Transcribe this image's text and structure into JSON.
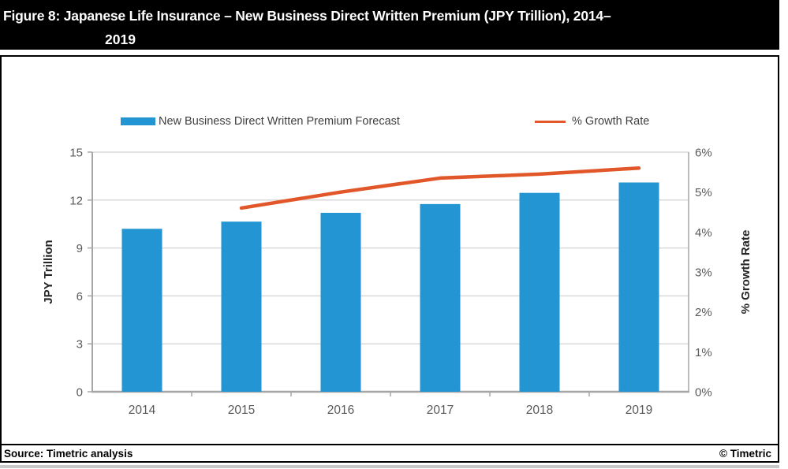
{
  "title": {
    "line1": "Figure 8: Japanese Life Insurance – New Business Direct Written Premium (JPY Trillion), 2014–",
    "line2": "2019"
  },
  "legend": {
    "premium_label": "New Business Direct Written Premium Forecast",
    "growth_label": "% Growth Rate"
  },
  "footer": {
    "source": "Source: Timetric analysis",
    "copyright": "© Timetric"
  },
  "colors": {
    "bar": "#2295d2",
    "line": "#e2572a",
    "grid": "#d9d9d9",
    "axis": "#a6a6a6",
    "tick_text": "#595959",
    "axis_title_text": "#262626",
    "title_bg": "#000000",
    "title_text": "#ffffff"
  },
  "chart_data": {
    "type": "bar",
    "subtype": "bar+line combo, dual axis",
    "categories": [
      "2014",
      "2015",
      "2016",
      "2017",
      "2018",
      "2019"
    ],
    "series": [
      {
        "name": "New Business Direct Written Premium Forecast",
        "type": "bar",
        "axis": "left",
        "color": "#2295d2",
        "values": [
          10.2,
          10.65,
          11.2,
          11.75,
          12.45,
          13.1
        ]
      },
      {
        "name": "% Growth Rate",
        "type": "line",
        "axis": "right",
        "color": "#e2572a",
        "values": [
          null,
          4.6,
          5.0,
          5.35,
          5.45,
          5.6
        ]
      }
    ],
    "left_axis": {
      "label": "JPY Trillion",
      "min": 0,
      "max": 15,
      "step": 3,
      "ticks": [
        "0",
        "3",
        "6",
        "9",
        "12",
        "15"
      ]
    },
    "right_axis": {
      "label": "% Growth Rate",
      "min": 0,
      "max": 6,
      "step": 1,
      "ticks": [
        "0%",
        "1%",
        "2%",
        "3%",
        "4%",
        "5%",
        "6%"
      ]
    },
    "grid": true,
    "legend_position": "top"
  }
}
